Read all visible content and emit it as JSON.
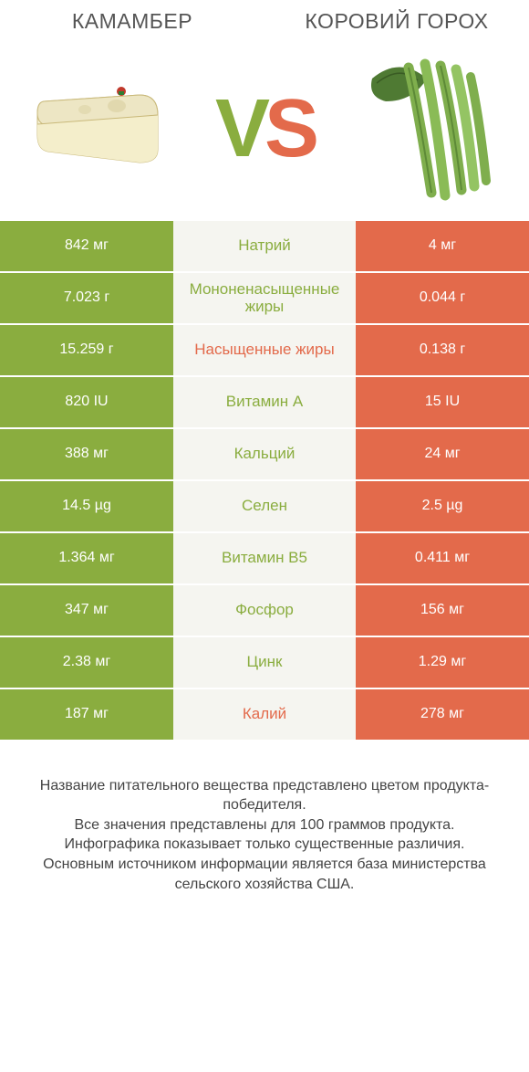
{
  "colors": {
    "left": "#8aad3f",
    "right": "#e36a4b",
    "mid_bg": "#f5f5f0",
    "heading": "#555555",
    "foot": "#444444"
  },
  "header": {
    "left_title": "КАМАМБЕР",
    "right_title": "КОРОВИЙ ГОРОХ",
    "vs_v": "V",
    "vs_s": "S"
  },
  "rows": [
    {
      "left": "842 мг",
      "label": "Натрий",
      "right": "4 мг",
      "winner": "left"
    },
    {
      "left": "7.023 г",
      "label": "Мононенасыщенные жиры",
      "right": "0.044 г",
      "winner": "left"
    },
    {
      "left": "15.259 г",
      "label": "Насыщенные жиры",
      "right": "0.138 г",
      "winner": "right"
    },
    {
      "left": "820 IU",
      "label": "Витамин A",
      "right": "15 IU",
      "winner": "left"
    },
    {
      "left": "388 мг",
      "label": "Кальций",
      "right": "24 мг",
      "winner": "left"
    },
    {
      "left": "14.5 µg",
      "label": "Селен",
      "right": "2.5 µg",
      "winner": "left"
    },
    {
      "left": "1.364 мг",
      "label": "Витамин B5",
      "right": "0.411 мг",
      "winner": "left"
    },
    {
      "left": "347 мг",
      "label": "Фосфор",
      "right": "156 мг",
      "winner": "left"
    },
    {
      "left": "2.38 мг",
      "label": "Цинк",
      "right": "1.29 мг",
      "winner": "left"
    },
    {
      "left": "187 мг",
      "label": "Калий",
      "right": "278 мг",
      "winner": "right"
    }
  ],
  "footnote_lines": [
    "Название питательного вещества представлено цветом продукта-победителя.",
    "Все значения представлены для 100 граммов продукта.",
    "Инфографика показывает только существенные различия.",
    "Основным источником информации является база министерства сельского хозяйства США."
  ]
}
